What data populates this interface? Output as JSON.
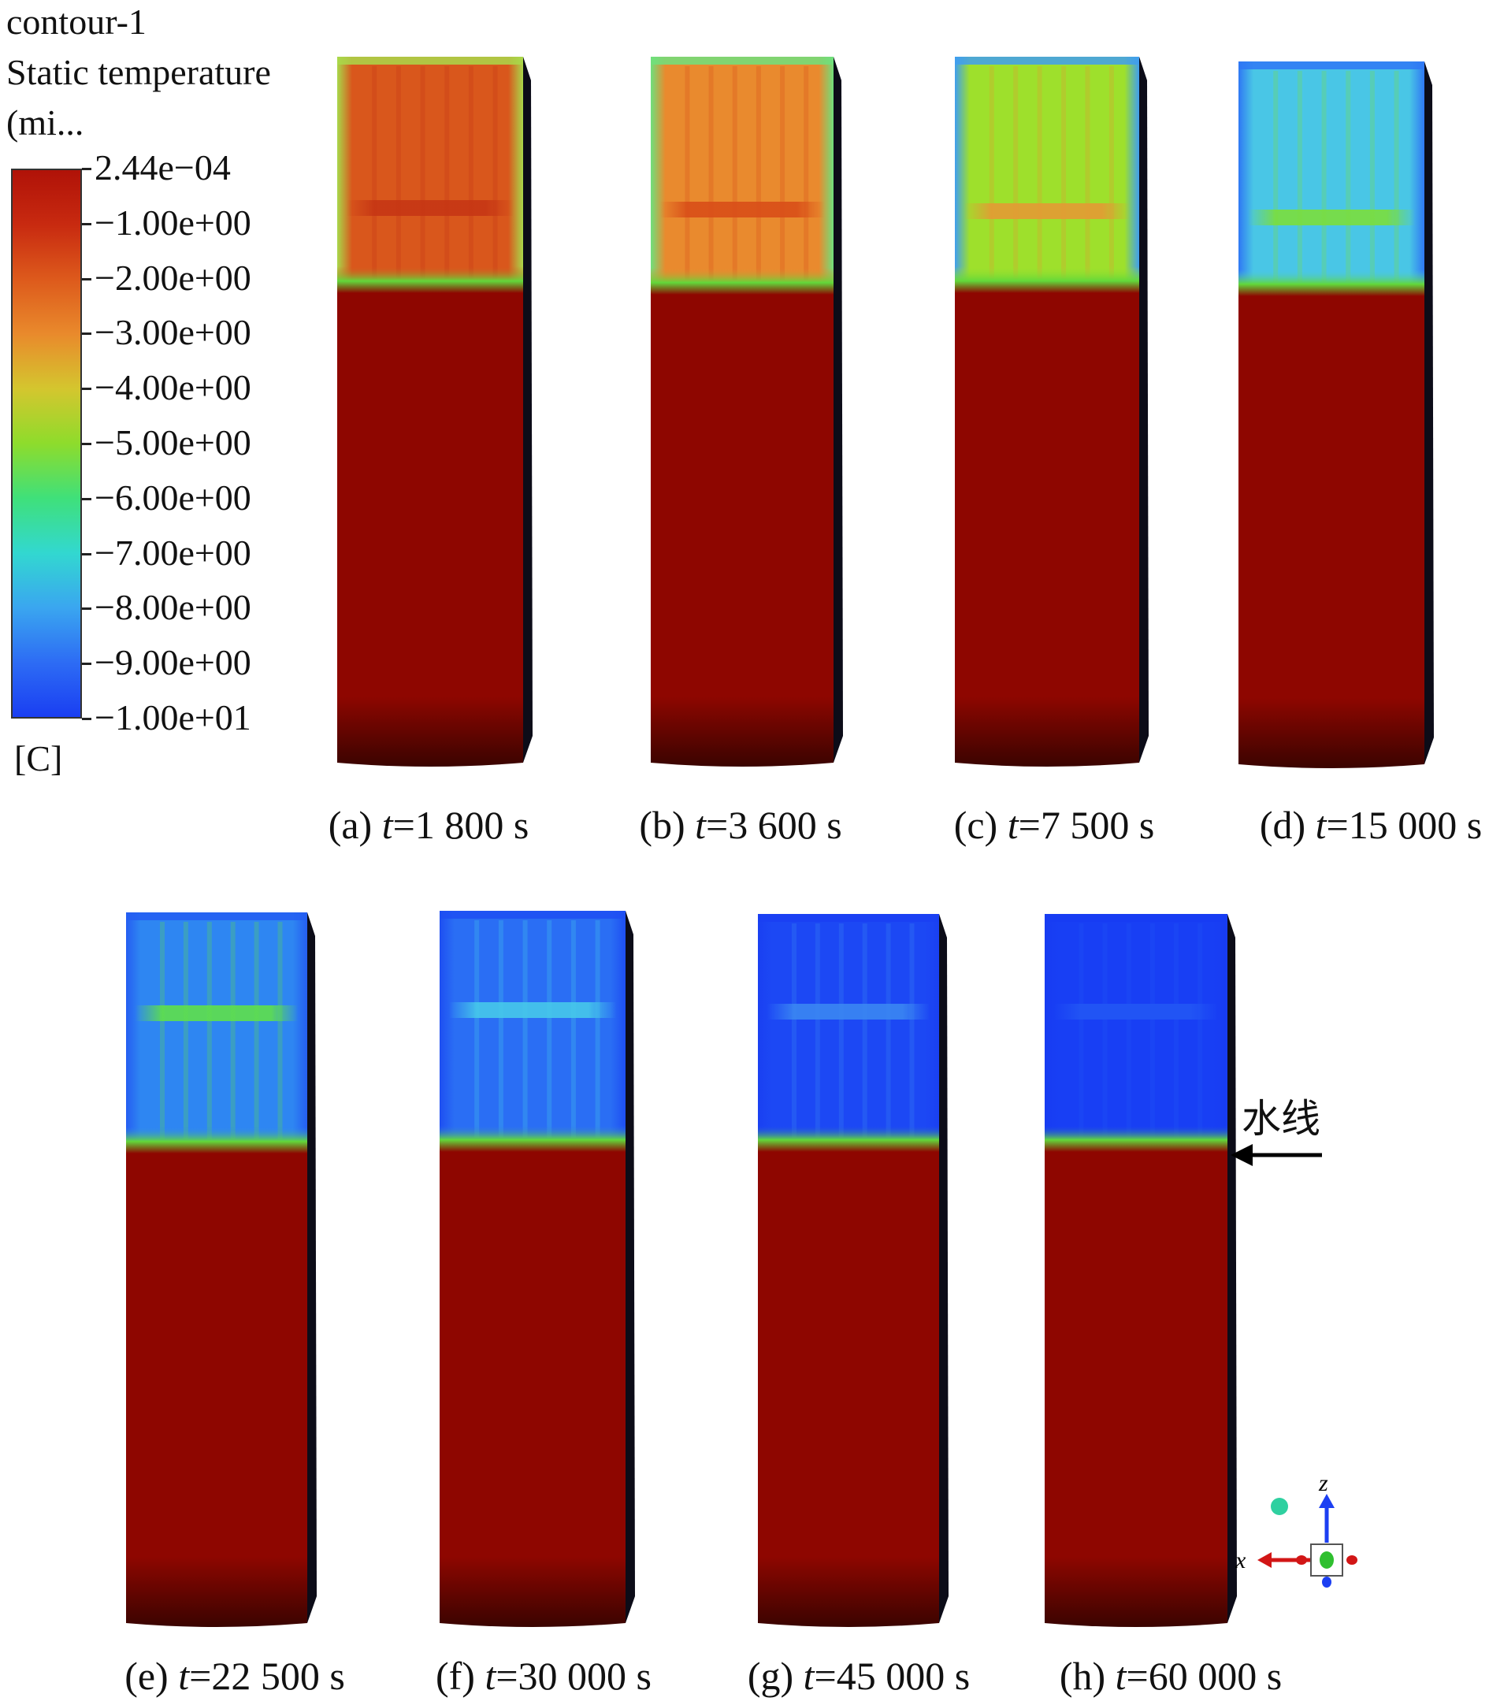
{
  "legend": {
    "title_line1": "contour-1",
    "title_line2": "Static temperature",
    "title_line3": "(mi...",
    "unit": "[C]",
    "ticks": [
      "2.44e−04",
      "−1.00e+00",
      "−2.00e+00",
      "−3.00e+00",
      "−4.00e+00",
      "−5.00e+00",
      "−6.00e+00",
      "−7.00e+00",
      "−8.00e+00",
      "−9.00e+00",
      "−1.00e+01"
    ],
    "gradient_colors": [
      "#b01208",
      "#c82a10",
      "#dd5a1c",
      "#e98a2c",
      "#d4c62e",
      "#8edc2c",
      "#3fe07a",
      "#32d8d0",
      "#3aa6f0",
      "#2d6cf4",
      "#1a3ef2"
    ]
  },
  "panels": [
    {
      "id": "a",
      "prefix": "(a) ",
      "var": "t",
      "value": "=1 800 s",
      "top_color": "#d9571c",
      "band_color": "#c63614",
      "edge_color": "#a9d84a"
    },
    {
      "id": "b",
      "prefix": "(b) ",
      "var": "t",
      "value": "=3 600 s",
      "top_color": "#e98a2e",
      "band_color": "#d94e18",
      "edge_color": "#6fe07c"
    },
    {
      "id": "c",
      "prefix": "(c) ",
      "var": "t",
      "value": "=7 500 s",
      "top_color": "#9ee02c",
      "band_color": "#e49a34",
      "edge_color": "#3f9ef0"
    },
    {
      "id": "d",
      "prefix": "(d) ",
      "var": "t",
      "value": "=15 000 s",
      "top_color": "#49c6e6",
      "band_color": "#7bde3c",
      "edge_color": "#2f78f4"
    },
    {
      "id": "e",
      "prefix": "(e) ",
      "var": "t",
      "value": "=22 500 s",
      "top_color": "#2e86f2",
      "band_color": "#5fe04a",
      "edge_color": "#255ef2"
    },
    {
      "id": "f",
      "prefix": "(f) ",
      "var": "t",
      "value": "=30 000 s",
      "top_color": "#2a6ef4",
      "band_color": "#46c8ea",
      "edge_color": "#1e4ff2"
    },
    {
      "id": "g",
      "prefix": "(g) ",
      "var": "t",
      "value": "=45 000 s",
      "top_color": "#1c48f4",
      "band_color": "#3a86f2",
      "edge_color": "#1a40f2"
    },
    {
      "id": "h",
      "prefix": "(h) ",
      "var": "t",
      "value": "=60 000 s",
      "top_color": "#183ff4",
      "band_color": "#2256f4",
      "edge_color": "#173cf2"
    }
  ],
  "annotation": {
    "waterline_label": "水线"
  },
  "axes_triad": {
    "z_label": "z",
    "x_label": "x"
  },
  "colors": {
    "solid": "#8e0600",
    "solid_bottom": "#3a0400",
    "waterline_green": "#62d83a"
  }
}
